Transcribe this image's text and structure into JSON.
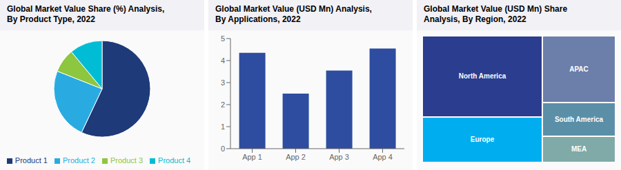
{
  "chart_data": [
    {
      "type": "pie",
      "title": "Global Market Value Share (%) Analysis,\nBy Product Type, 2022",
      "categories": [
        "Product 1",
        "Product 2",
        "Product 3",
        "Product 4"
      ],
      "values": [
        57,
        24,
        8,
        11
      ],
      "colors": [
        "#1e3a78",
        "#29abe2",
        "#8dc63f",
        "#00bcd4"
      ],
      "legend": "bottom"
    },
    {
      "type": "bar",
      "title": "Global Market Value (USD Mn) Analysis,\nBy Applications, 2022",
      "categories": [
        "App 1",
        "App 2",
        "App 3",
        "App 4"
      ],
      "values": [
        4.35,
        2.5,
        3.55,
        4.55
      ],
      "color": "#2e4da0",
      "ylim": [
        0,
        5
      ],
      "yticks": [
        0,
        1,
        2,
        3,
        4,
        5
      ],
      "grid": false
    },
    {
      "type": "treemap",
      "title": "Global Market Value (USD Mn) Share\nAnalysis, By Region, 2022",
      "categories": [
        "North America",
        "Europe",
        "APAC",
        "South America",
        "MEA"
      ],
      "values": [
        40,
        22,
        20,
        10,
        8
      ],
      "colors": [
        "#2b3d8f",
        "#00aeef",
        "#6b7faa",
        "#5b8fa8",
        "#7faaa8"
      ]
    }
  ]
}
